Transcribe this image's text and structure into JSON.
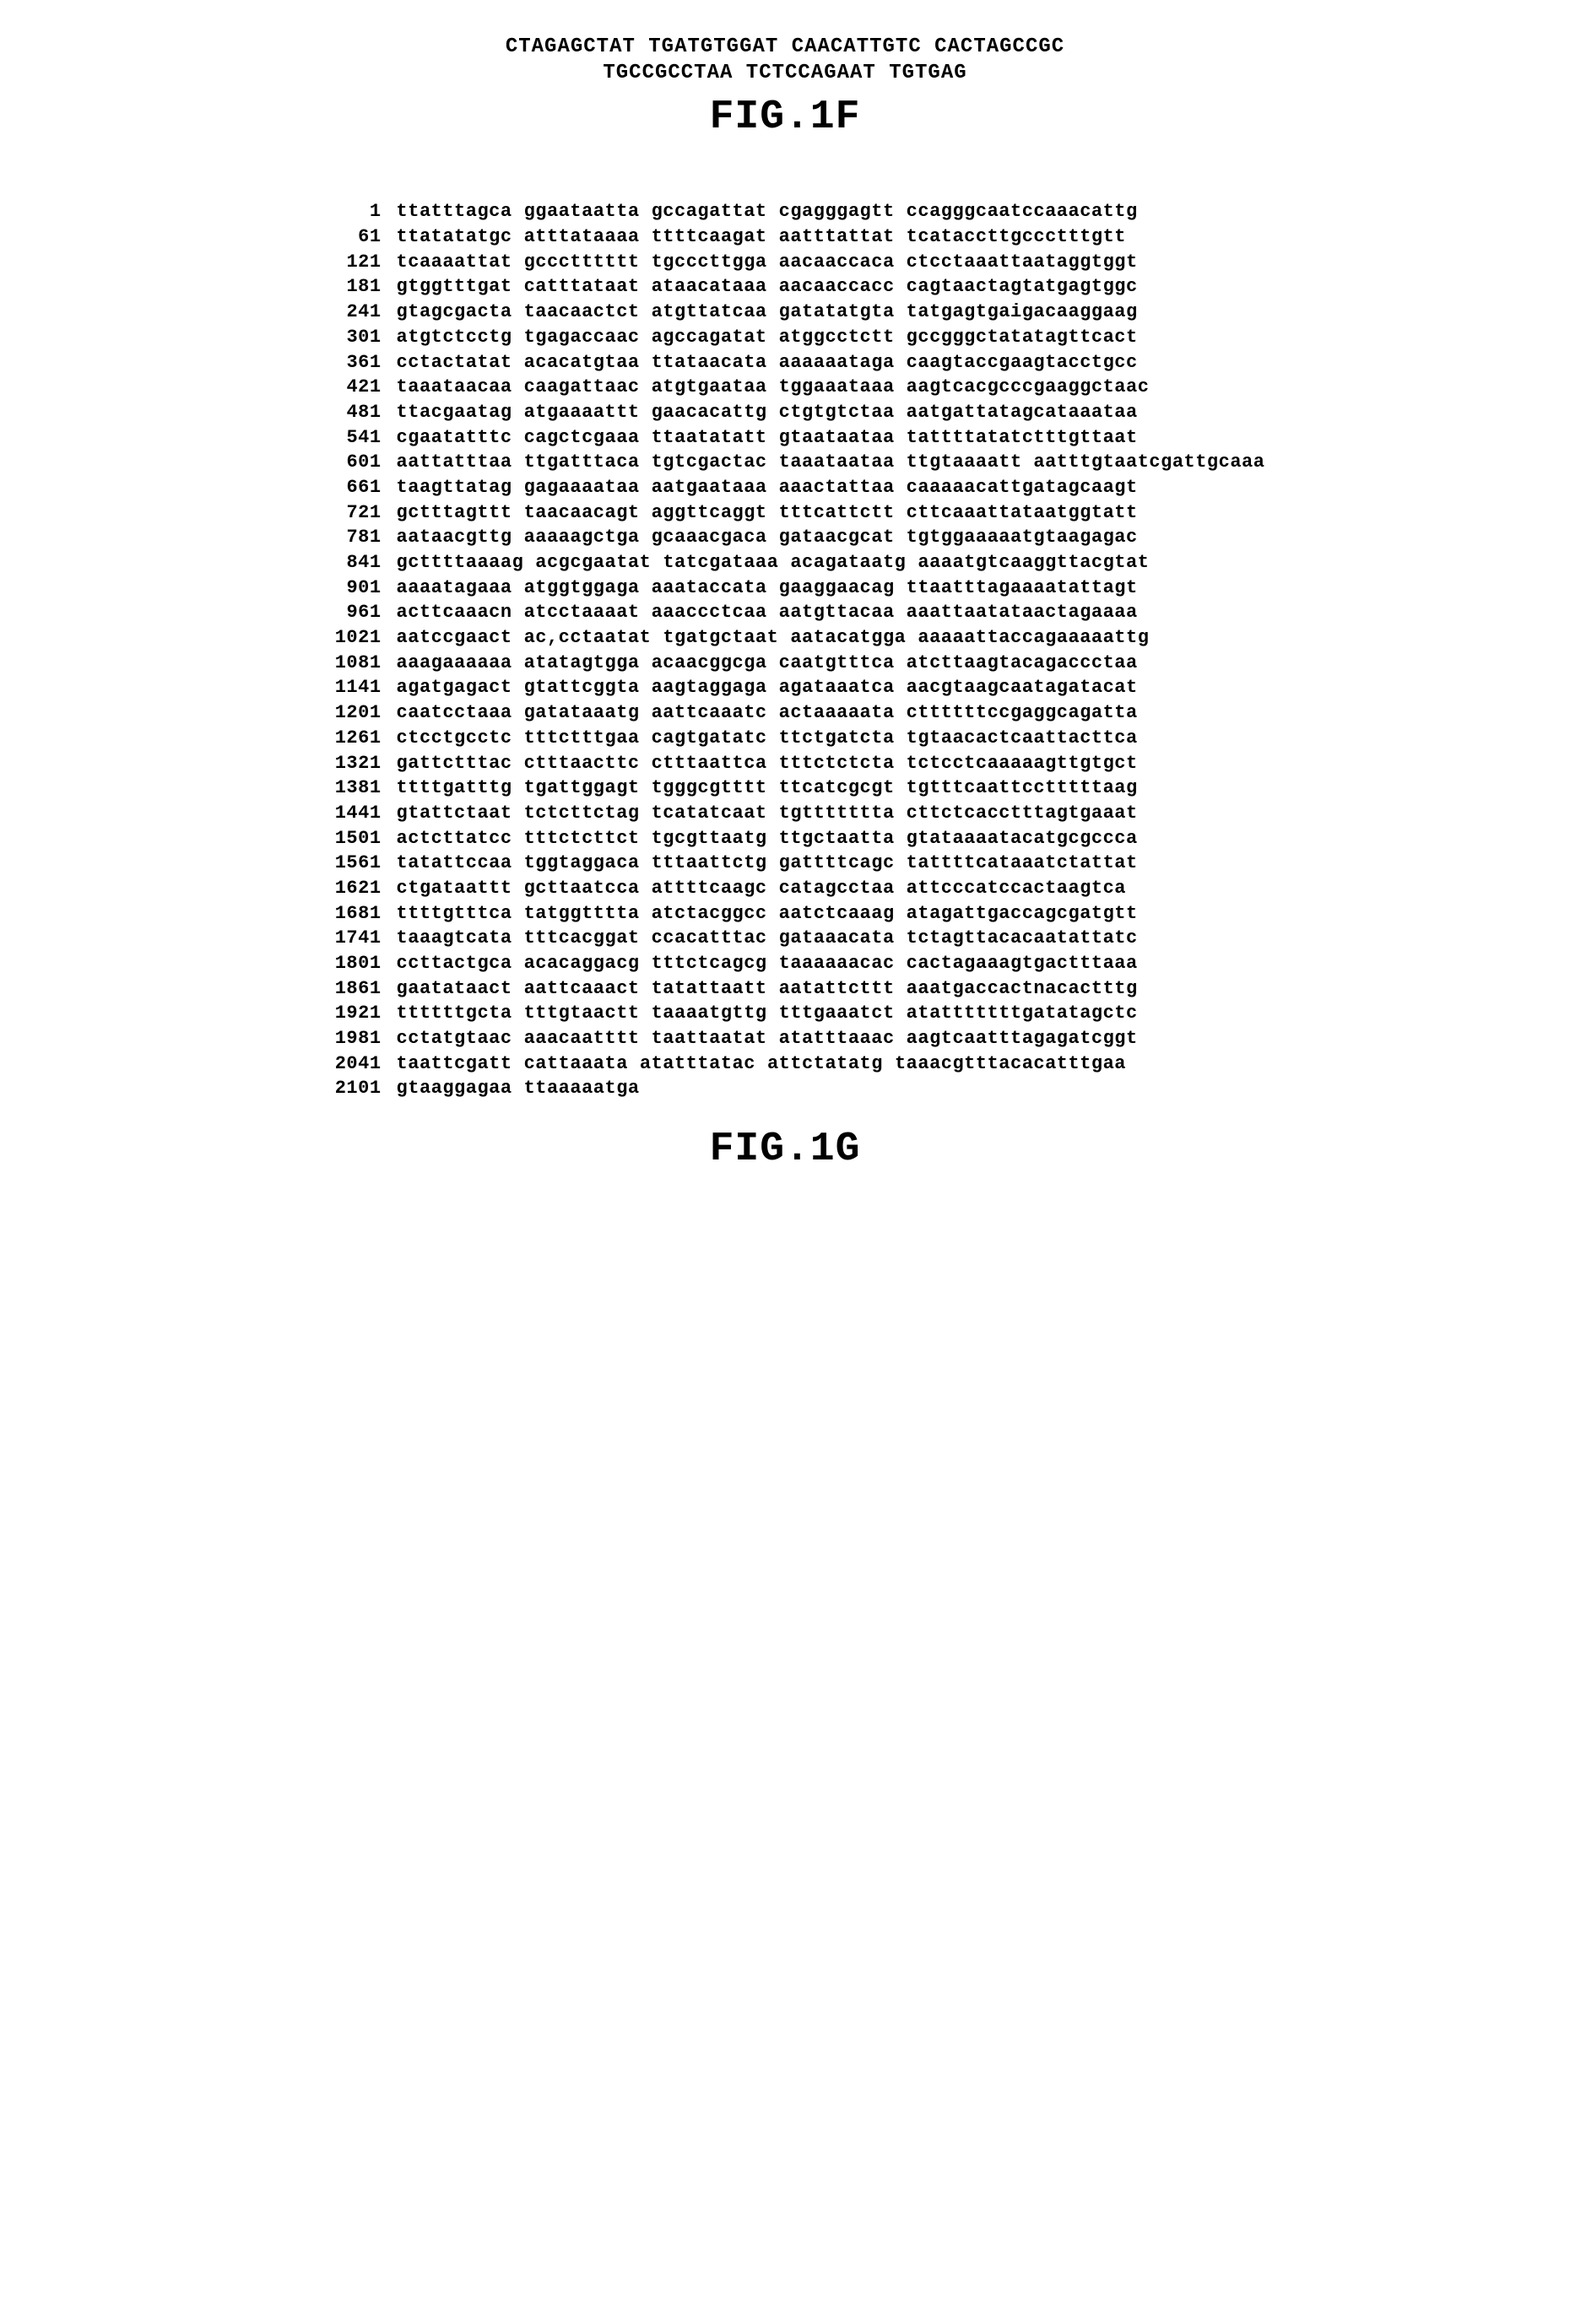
{
  "header": {
    "line1": "CTAGAGCTAT TGATGTGGAT CAACATTGTC CACTAGCCGC",
    "line2": "TGCCGCCTAA TCTCCAGAAT TGTGAG"
  },
  "fig1f_title": "FIG.1F",
  "fig1g_title": "FIG.1G",
  "sequence": [
    {
      "n": 1,
      "c": [
        "ttatttagca",
        "ggaataatta",
        "gccagattat",
        "cgagggagtt",
        "ccagggcaatccaaacattg"
      ]
    },
    {
      "n": 61,
      "c": [
        "ttatatatgc",
        "atttataaaa",
        "ttttcaagat",
        "aatttattat",
        "tcataccttgccctttgtt"
      ]
    },
    {
      "n": 121,
      "c": [
        "tcaaaattat",
        "gccctttttt",
        "tgcccttgga",
        "aacaaccaca",
        "ctcctaaattaataggtggt"
      ]
    },
    {
      "n": 181,
      "c": [
        "gtggtttgat",
        "catttataat",
        "ataacataaa",
        "aacaaccacc",
        "cagtaactagtatgagtggc"
      ]
    },
    {
      "n": 241,
      "c": [
        "gtagcgacta",
        "taacaactct",
        "atgttatcaa",
        "gatatatgta",
        "tatgagtgaigacaaggaag"
      ]
    },
    {
      "n": 301,
      "c": [
        "atgtctcctg",
        "tgagaccaac",
        "agccagatat",
        "atggcctctt",
        "gccgggctatatagttcact"
      ]
    },
    {
      "n": 361,
      "c": [
        "cctactatat",
        "acacatgtaa",
        "ttataacata",
        "aaaaaataga",
        "caagtaccgaagtacctgcc"
      ]
    },
    {
      "n": 421,
      "c": [
        "taaataacaa",
        "caagattaac",
        "atgtgaataa",
        "tggaaataaa",
        "aagtcacgcccgaaggctaac"
      ]
    },
    {
      "n": 481,
      "c": [
        "ttacgaatag",
        "atgaaaattt",
        "gaacacattg",
        "ctgtgtctaa",
        "aatgattatagcataaataa"
      ]
    },
    {
      "n": 541,
      "c": [
        "cgaatatttc",
        "cagctcgaaa",
        "ttaatatatt",
        "gtaataataa",
        "tattttatatctttgttaat"
      ]
    },
    {
      "n": 601,
      "c": [
        "aattatttaa",
        "ttgatttaca",
        "tgtcgactac",
        "taaataataa",
        "ttgtaaaatt aatttgtaatcgattgcaaa"
      ]
    },
    {
      "n": 661,
      "c": [
        "taagttatag",
        "gagaaaataa",
        "aatgaataaa",
        "aaactattaa",
        "caaaaacattgatagcaagt"
      ]
    },
    {
      "n": 721,
      "c": [
        "gctttagttt",
        "taacaacagt",
        "aggttcaggt",
        "tttcattctt",
        "cttcaaattataatggtatt"
      ]
    },
    {
      "n": 781,
      "c": [
        "aataacgttg",
        "aaaaagctga",
        "gcaaacgaca",
        "gataacgcat",
        "tgtggaaaaatgtaagagac"
      ]
    },
    {
      "n": 841,
      "c": [
        "gcttttaaaag",
        "acgcgaatat",
        "tatcgataaa",
        "acagataatg",
        "aaaatgtcaaggttacgtat"
      ]
    },
    {
      "n": 901,
      "c": [
        "aaaatagaaa",
        "atggtggaga",
        "aaataccata",
        "gaaggaacag",
        "ttaatttagaaaatattagt"
      ]
    },
    {
      "n": 961,
      "c": [
        "acttcaaacn",
        "atcctaaaat",
        "aaaccctcaa",
        "aatgttacaa",
        "aaattaatataactagaaaa"
      ]
    },
    {
      "n": 1021,
      "c": [
        "aatccgaact",
        "ac,cctaatat",
        "tgatgctaat",
        "aatacatgga",
        "aaaaattaccagaaaaattg"
      ]
    },
    {
      "n": 1081,
      "c": [
        "aaagaaaaaa",
        "atatagtgga",
        "acaacggcga",
        "caatgtttca",
        "atcttaagtacagaccctaa"
      ]
    },
    {
      "n": 1141,
      "c": [
        "agatgagact",
        "gtattcggta",
        "aagtaggaga",
        "agataaatca",
        "aacgtaagcaatagatacat"
      ]
    },
    {
      "n": 1201,
      "c": [
        "caatcctaaa",
        "gatataaatg",
        "aattcaaatc",
        "actaaaaata",
        "cttttttccgaggcagatta"
      ]
    },
    {
      "n": 1261,
      "c": [
        "ctcctgcctc",
        "tttctttgaa",
        "cagtgatatc",
        "ttctgatcta",
        "tgtaacactcaattacttca"
      ]
    },
    {
      "n": 1321,
      "c": [
        "gattctttac",
        "ctttaacttc",
        "ctttaattca",
        "tttctctcta",
        "tctcctcaaaaagttgtgct"
      ]
    },
    {
      "n": 1381,
      "c": [
        "ttttgatttg",
        "tgattggagt",
        "tgggcgtttt",
        "ttcatcgcgt",
        "tgtttcaattcctttttaag"
      ]
    },
    {
      "n": 1441,
      "c": [
        "gtattctaat",
        "tctcttctag",
        "tcatatcaat",
        "tgttttttta",
        "cttctcacctttagtgaaat"
      ]
    },
    {
      "n": 1501,
      "c": [
        "actcttatcc",
        "tttctcttct",
        "tgcgttaatg",
        "ttgctaatta",
        "gtataaaatacatgcgccca"
      ]
    },
    {
      "n": 1561,
      "c": [
        "tatattccaa",
        "tggtaggaca",
        "tttaattctg",
        "gattttcagc",
        "tattttcataaatctattat"
      ]
    },
    {
      "n": 1621,
      "c": [
        "ctgataattt",
        "gcttaatcca",
        "attttcaagc",
        "catagcctaa",
        "attcccatccactaagtca"
      ]
    },
    {
      "n": 1681,
      "c": [
        "ttttgtttca",
        "tatggtttta",
        "atctacggcc",
        "aatctcaaag",
        "atagattgaccagcgatgtt"
      ]
    },
    {
      "n": 1741,
      "c": [
        "taaagtcata",
        "tttcacggat",
        "ccacatttac",
        "gataaacata",
        "tctagttacacaatattatc"
      ]
    },
    {
      "n": 1801,
      "c": [
        "ccttactgca",
        "acacaggacg",
        "tttctcagcg",
        "taaaaaacac",
        "cactagaaagtgactttaaa"
      ]
    },
    {
      "n": 1861,
      "c": [
        "gaatataact",
        "aattcaaact",
        "tatattaatt",
        "aatattcttt",
        "aaatgaccactnacactttg"
      ]
    },
    {
      "n": 1921,
      "c": [
        "ttttttgcta",
        "tttgtaactt",
        "taaaatgttg",
        "tttgaaatct",
        "atatttttttgatatagctc"
      ]
    },
    {
      "n": 1981,
      "c": [
        "cctatgtaac",
        "aaacaatttt",
        "taattaatat",
        "atatttaaac",
        "aagtcaatttagagatcggt"
      ]
    },
    {
      "n": 2041,
      "c": [
        "taattcgatt",
        "cattaaata",
        "atatttatac",
        "attctatatg",
        "taaacgtttacacatttgaa"
      ]
    },
    {
      "n": 2101,
      "c": [
        "gtaaggagaa",
        "ttaaaaatga",
        "",
        "",
        ""
      ]
    }
  ]
}
